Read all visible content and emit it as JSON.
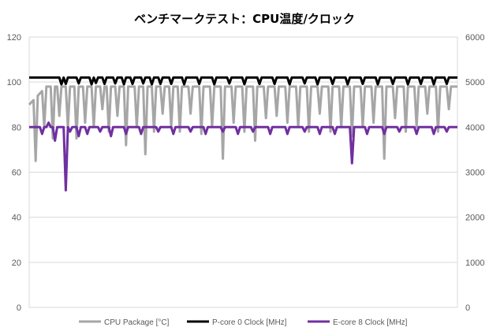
{
  "chart_data": {
    "type": "line",
    "title": "ベンチマークテスト：CPU温度/クロック",
    "grid": true,
    "legend_position": "bottom",
    "x_samples": 200,
    "y_left": {
      "min": 0,
      "max": 120,
      "step": 20,
      "ticks": [
        "0",
        "20",
        "40",
        "60",
        "80",
        "100",
        "120"
      ]
    },
    "y_right": {
      "min": 0,
      "max": 6000,
      "step": 1000,
      "ticks": [
        "0",
        "1000",
        "2000",
        "3000",
        "4000",
        "5000",
        "6000"
      ]
    },
    "series": [
      {
        "name": "CPU Package [°C]",
        "axis": "left",
        "color": "#a6a6a6",
        "base": 98,
        "start": [
          90,
          91,
          92,
          93,
          94,
          95,
          96,
          97
        ],
        "dips": [
          [
            3,
            65
          ],
          [
            7,
            80
          ],
          [
            11,
            75
          ],
          [
            14,
            85
          ],
          [
            18,
            80
          ],
          [
            22,
            75
          ],
          [
            26,
            82
          ],
          [
            30,
            80
          ],
          [
            34,
            88
          ],
          [
            37,
            78
          ],
          [
            41,
            85
          ],
          [
            45,
            72
          ],
          [
            50,
            80
          ],
          [
            54,
            68
          ],
          [
            58,
            78
          ],
          [
            62,
            86
          ],
          [
            66,
            80
          ],
          [
            70,
            78
          ],
          [
            75,
            86
          ],
          [
            80,
            77
          ],
          [
            85,
            80
          ],
          [
            90,
            66
          ],
          [
            95,
            82
          ],
          [
            100,
            78
          ],
          [
            105,
            74
          ],
          [
            110,
            84
          ],
          [
            115,
            85
          ],
          [
            120,
            82
          ],
          [
            125,
            80
          ],
          [
            130,
            78
          ],
          [
            135,
            86
          ],
          [
            140,
            78
          ],
          [
            145,
            80
          ],
          [
            150,
            76
          ],
          [
            155,
            80
          ],
          [
            160,
            82
          ],
          [
            165,
            66
          ],
          [
            170,
            84
          ],
          [
            175,
            78
          ],
          [
            180,
            80
          ],
          [
            185,
            86
          ],
          [
            190,
            78
          ],
          [
            195,
            88
          ]
        ]
      },
      {
        "name": "P-core 0 Clock [MHz]",
        "axis": "right",
        "color": "#000000",
        "base": 5100,
        "dips": [
          [
            15,
            4950
          ],
          [
            17,
            4960
          ],
          [
            23,
            4970
          ],
          [
            29,
            4950
          ],
          [
            31,
            4980
          ],
          [
            35,
            4960
          ],
          [
            40,
            4970
          ],
          [
            44,
            4950
          ],
          [
            48,
            4960
          ],
          [
            53,
            4970
          ],
          [
            57,
            4950
          ],
          [
            61,
            4960
          ],
          [
            66,
            4960
          ],
          [
            72,
            4950
          ],
          [
            79,
            4960
          ],
          [
            86,
            4950
          ],
          [
            93,
            4970
          ],
          [
            100,
            4950
          ],
          [
            107,
            4960
          ],
          [
            114,
            4960
          ],
          [
            121,
            4950
          ],
          [
            128,
            4970
          ],
          [
            134,
            4950
          ],
          [
            141,
            4960
          ],
          [
            148,
            4950
          ],
          [
            155,
            4960
          ],
          [
            162,
            4950
          ],
          [
            169,
            4960
          ],
          [
            176,
            4950
          ],
          [
            182,
            4960
          ],
          [
            188,
            4950
          ],
          [
            194,
            4960
          ]
        ]
      },
      {
        "name": "E-core 8 Clock [MHz]",
        "axis": "right",
        "color": "#7030a0",
        "base": 4000,
        "dips": [
          [
            6,
            3850
          ],
          [
            9,
            4100
          ],
          [
            12,
            3700
          ],
          [
            17,
            2600
          ],
          [
            19,
            3900
          ],
          [
            23,
            3800
          ],
          [
            27,
            3850
          ],
          [
            33,
            3900
          ],
          [
            38,
            3800
          ],
          [
            45,
            3850
          ],
          [
            52,
            3850
          ],
          [
            60,
            3900
          ],
          [
            67,
            3850
          ],
          [
            75,
            3900
          ],
          [
            82,
            3850
          ],
          [
            90,
            3900
          ],
          [
            97,
            3850
          ],
          [
            104,
            3900
          ],
          [
            112,
            3850
          ],
          [
            120,
            3850
          ],
          [
            128,
            3900
          ],
          [
            135,
            3850
          ],
          [
            142,
            3850
          ],
          [
            150,
            3200
          ],
          [
            157,
            3850
          ],
          [
            165,
            3850
          ],
          [
            172,
            3900
          ],
          [
            180,
            3850
          ],
          [
            188,
            3850
          ],
          [
            194,
            3900
          ]
        ]
      }
    ]
  }
}
